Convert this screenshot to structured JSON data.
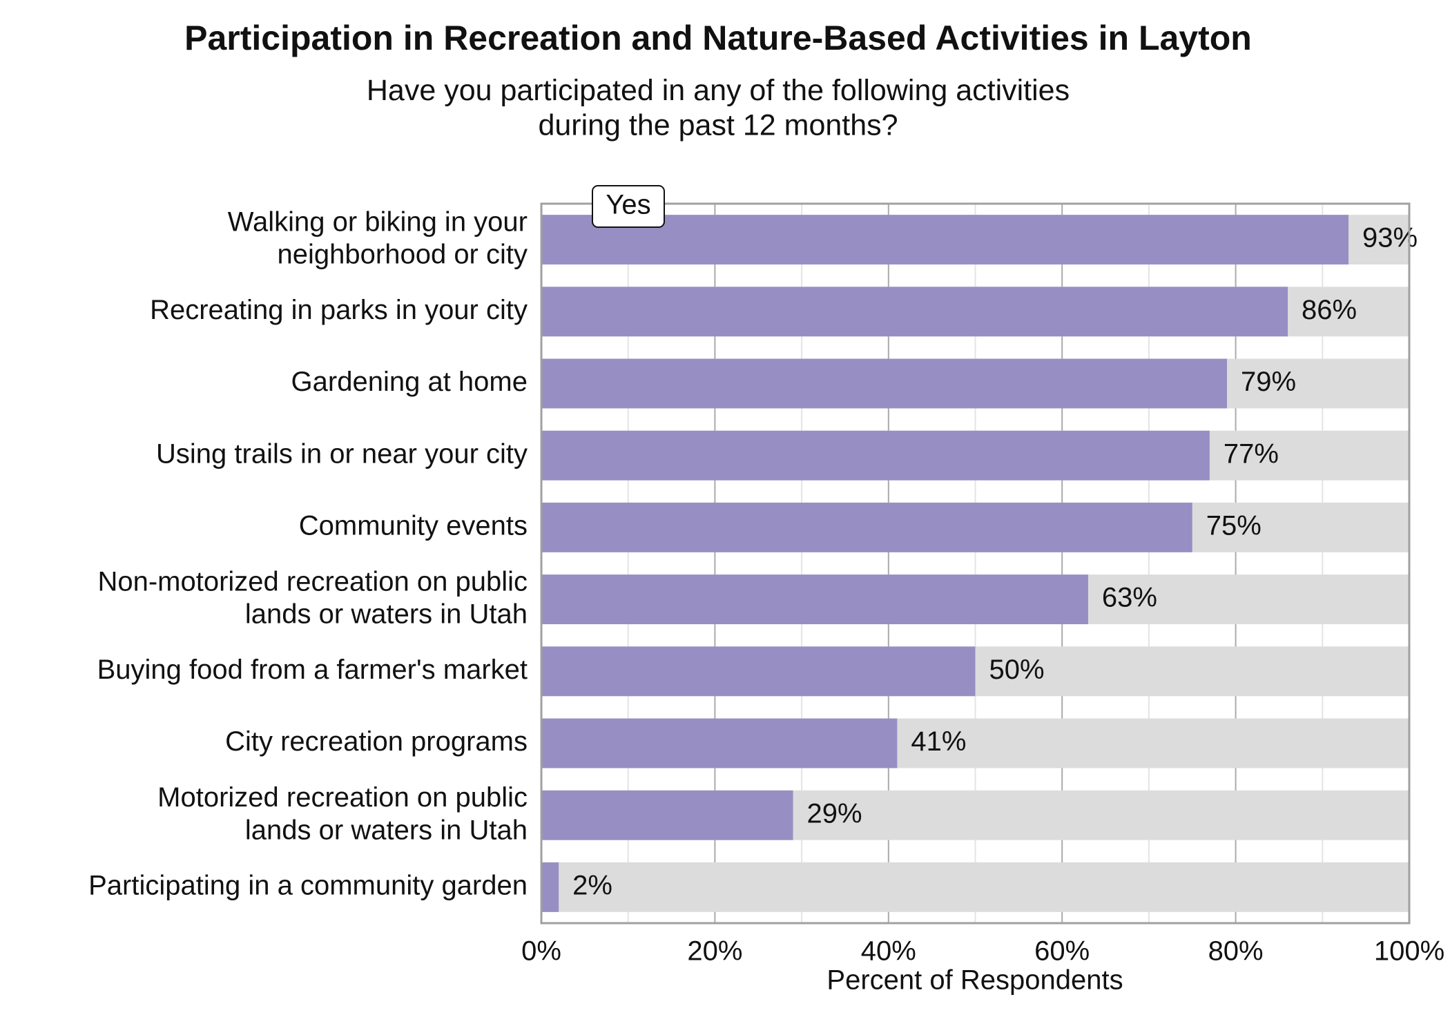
{
  "chart_data": {
    "type": "bar",
    "orientation": "horizontal",
    "title": "Participation in Recreation and Nature-Based Activities in Layton",
    "subtitle": "Have you participated in any of the following activities\nduring the past 12 months?",
    "x_label": "Percent of Respondents",
    "categories": [
      "Walking or biking in your\nneighborhood or city",
      "Recreating in parks in your city",
      "Gardening at home",
      "Using trails in or near your city",
      "Community events",
      "Non-motorized recreation on public\nlands or waters in Utah",
      "Buying food from a farmer's market",
      "City recreation programs",
      "Motorized recreation on public\nlands or waters in Utah",
      "Participating in a community garden"
    ],
    "series": [
      {
        "name": "Yes",
        "color": "#978fc3",
        "values": [
          93,
          86,
          79,
          77,
          75,
          63,
          50,
          41,
          29,
          2
        ],
        "value_labels": [
          "93%",
          "86%",
          "79%",
          "77%",
          "75%",
          "63%",
          "50%",
          "41%",
          "29%",
          "2%"
        ]
      }
    ],
    "background_color": "#dcdcdc",
    "xlim": [
      0,
      100
    ],
    "xticks": [
      {
        "value": 0,
        "label": "0%"
      },
      {
        "value": 20,
        "label": "20%"
      },
      {
        "value": 40,
        "label": "40%"
      },
      {
        "value": 60,
        "label": "60%"
      },
      {
        "value": 80,
        "label": "80%"
      },
      {
        "value": 100,
        "label": "100%"
      }
    ],
    "minor_xticks": [
      10,
      30,
      50,
      70,
      90
    ],
    "grid": true,
    "legend": "top-left"
  }
}
